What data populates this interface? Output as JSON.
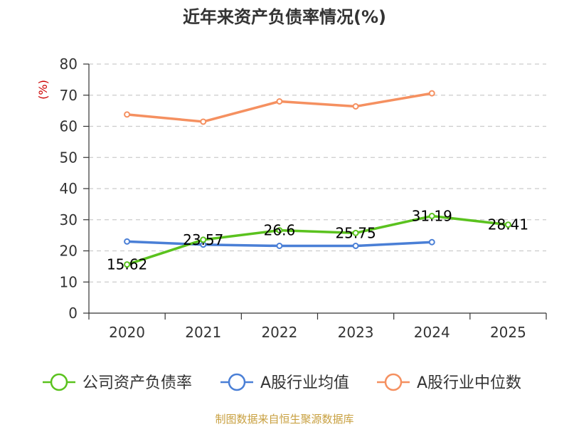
{
  "chart_data": {
    "type": "line",
    "title": "近年来资产负债率情况(%)",
    "ylabel": "(%)",
    "ylim": [
      0,
      80
    ],
    "yticks": [
      0,
      10,
      20,
      30,
      40,
      50,
      60,
      70,
      80
    ],
    "grid": true,
    "legend_position": "bottom",
    "categories": [
      "2020",
      "2021",
      "2022",
      "2023",
      "2024",
      "2025"
    ],
    "series": [
      {
        "name": "公司资产负债率",
        "color": "#5ac21e",
        "show_labels": true,
        "values": [
          15.62,
          23.57,
          26.6,
          25.75,
          31.19,
          28.41
        ],
        "labels": [
          "15.62",
          "23.57",
          "26.6",
          "25.75",
          "31.19",
          "28.41"
        ]
      },
      {
        "name": "A股行业均值",
        "color": "#4a7fd6",
        "show_labels": false,
        "values": [
          23.0,
          22.0,
          21.6,
          21.6,
          22.8,
          null
        ]
      },
      {
        "name": "A股行业中位数",
        "color": "#f59060",
        "show_labels": false,
        "values": [
          63.8,
          61.5,
          68.0,
          66.4,
          70.6,
          null
        ]
      }
    ],
    "source": "制图数据来自恒生聚源数据库"
  }
}
